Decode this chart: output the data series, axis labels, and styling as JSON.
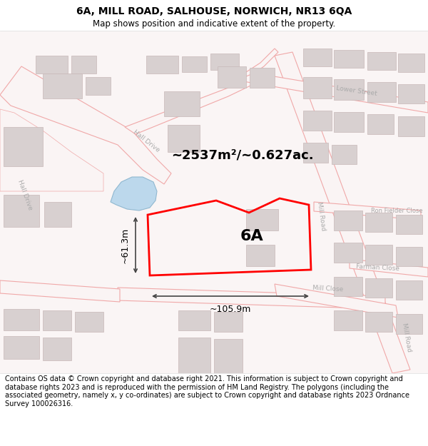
{
  "title_line1": "6A, MILL ROAD, SALHOUSE, NORWICH, NR13 6QA",
  "title_line2": "Map shows position and indicative extent of the property.",
  "footer_text": "Contains OS data © Crown copyright and database right 2021. This information is subject to Crown copyright and database rights 2023 and is reproduced with the permission of HM Land Registry. The polygons (including the associated geometry, namely x, y co-ordinates) are subject to Crown copyright and database rights 2023 Ordnance Survey 100026316.",
  "plot_label": "6A",
  "area_text": "~2537m²/~0.627ac.",
  "width_text": "~105.9m",
  "height_text": "~61.3m",
  "plot_color": "#ff0000",
  "road_color": "#f0a8a8",
  "road_fill": "#faf4f4",
  "building_fill": "#d8d0d0",
  "building_edge": "#c8b8b8",
  "water_fill": "#bcd8ec",
  "water_edge": "#90b8d0",
  "bg_color": "#faf5f5",
  "street_label_color": "#aaaaaa",
  "dim_color": "#444444",
  "title_fontsize": 10,
  "subtitle_fontsize": 8.5,
  "footer_fontsize": 7,
  "label_fontsize": 16,
  "area_fontsize": 13,
  "dim_fontsize": 9,
  "street_fontsize": 6.5
}
